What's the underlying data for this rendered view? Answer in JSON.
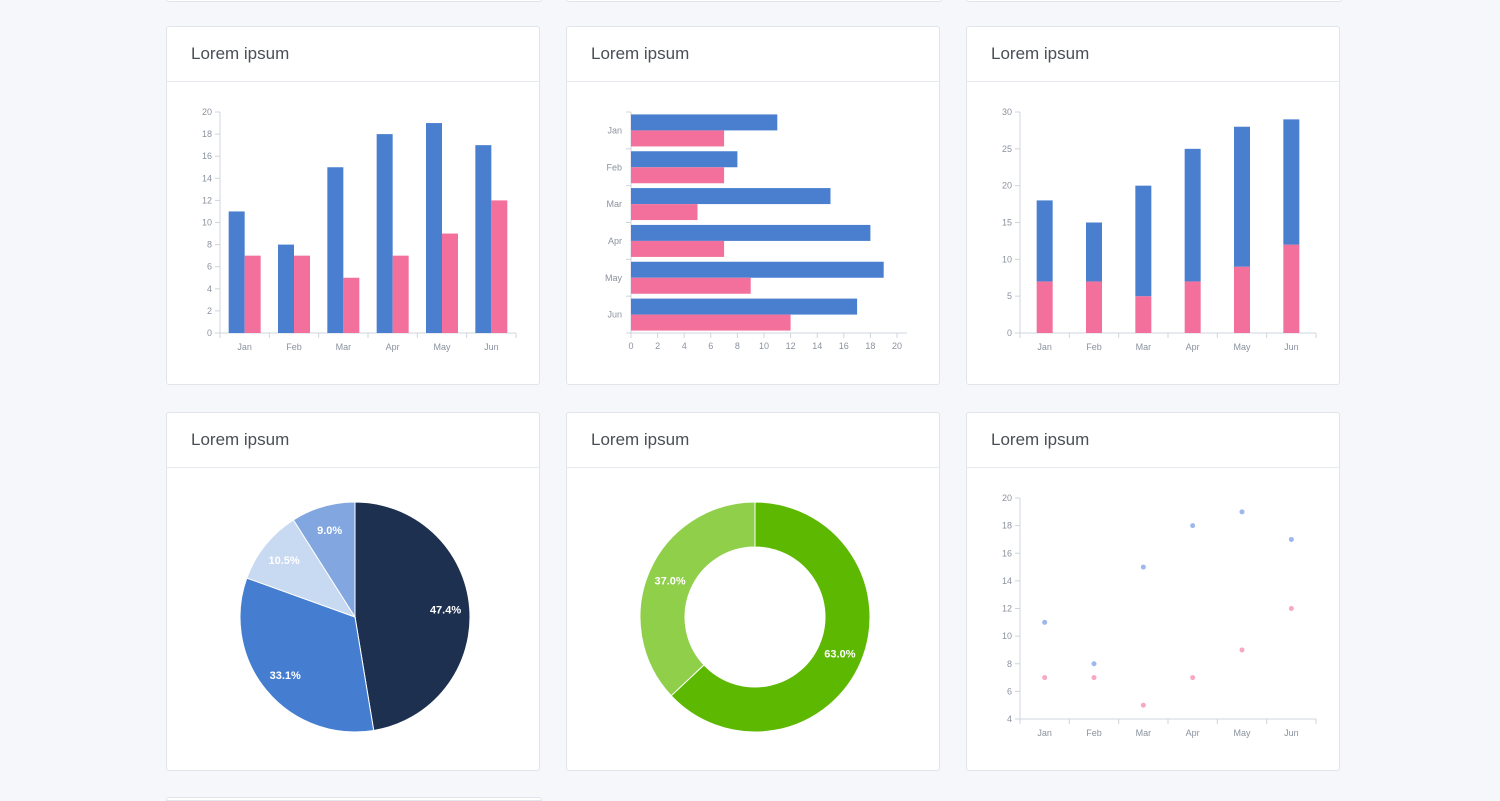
{
  "colors": {
    "blue": "#4a7fd0",
    "pink": "#f2709b",
    "axis": "#cfd4dc",
    "tick_text": "#8a929e"
  },
  "cards": [
    {
      "title": "Lorem ipsum"
    },
    {
      "title": "Lorem ipsum"
    },
    {
      "title": "Lorem ipsum"
    },
    {
      "title": "Lorem ipsum"
    },
    {
      "title": "Lorem ipsum"
    },
    {
      "title": "Lorem ipsum"
    }
  ],
  "chart_data": [
    {
      "type": "bar",
      "orientation": "vertical",
      "categories": [
        "Jan",
        "Feb",
        "Mar",
        "Apr",
        "May",
        "Jun"
      ],
      "series": [
        {
          "values": [
            11,
            8,
            15,
            18,
            19,
            17
          ],
          "color": "#4a7fd0"
        },
        {
          "values": [
            7,
            7,
            5,
            7,
            9,
            12
          ],
          "color": "#f2709b"
        }
      ],
      "ylim": [
        0,
        20
      ],
      "yticks": [
        0,
        2,
        4,
        6,
        8,
        10,
        12,
        14,
        16,
        18,
        20
      ]
    },
    {
      "type": "bar",
      "orientation": "horizontal",
      "categories": [
        "Jan",
        "Feb",
        "Mar",
        "Apr",
        "May",
        "Jun"
      ],
      "series": [
        {
          "values": [
            11,
            8,
            15,
            18,
            19,
            17
          ],
          "color": "#4a7fd0"
        },
        {
          "values": [
            7,
            7,
            5,
            7,
            9,
            12
          ],
          "color": "#f2709b"
        }
      ],
      "xlim": [
        0,
        20
      ],
      "xticks": [
        0,
        2,
        4,
        6,
        8,
        10,
        12,
        14,
        16,
        18,
        20
      ]
    },
    {
      "type": "bar",
      "stacked": true,
      "categories": [
        "Jan",
        "Feb",
        "Mar",
        "Apr",
        "May",
        "Jun"
      ],
      "series": [
        {
          "values": [
            7,
            7,
            5,
            7,
            9,
            12
          ],
          "color": "#f2709b"
        },
        {
          "values": [
            11,
            8,
            15,
            18,
            19,
            17
          ],
          "color": "#4a7fd0"
        }
      ],
      "ylim": [
        0,
        30
      ],
      "yticks": [
        0,
        5,
        10,
        15,
        20,
        25,
        30
      ]
    },
    {
      "type": "pie",
      "slices": [
        {
          "value": 47.4,
          "label": "47.4%",
          "color": "#1e3050"
        },
        {
          "value": 33.1,
          "label": "33.1%",
          "color": "#457ed0"
        },
        {
          "value": 10.5,
          "label": "10.5%",
          "color": "#c8d9f2"
        },
        {
          "value": 9.0,
          "label": "9.0%",
          "color": "#81a6e0"
        }
      ]
    },
    {
      "type": "pie",
      "donut": true,
      "slices": [
        {
          "value": 63.0,
          "label": "63.0%",
          "color": "#5cb800"
        },
        {
          "value": 37.0,
          "label": "37.0%",
          "color": "#8fcf4a"
        }
      ]
    },
    {
      "type": "scatter",
      "categories": [
        "Jan",
        "Feb",
        "Mar",
        "Apr",
        "May",
        "Jun"
      ],
      "series": [
        {
          "values": [
            11,
            8,
            15,
            18,
            19,
            17
          ],
          "color": "#9db8ee"
        },
        {
          "values": [
            7,
            7,
            5,
            7,
            9,
            12
          ],
          "color": "#f7a9c3"
        }
      ],
      "ylim": [
        4,
        20
      ],
      "yticks": [
        4,
        6,
        8,
        10,
        12,
        14,
        16,
        18,
        20
      ]
    }
  ]
}
